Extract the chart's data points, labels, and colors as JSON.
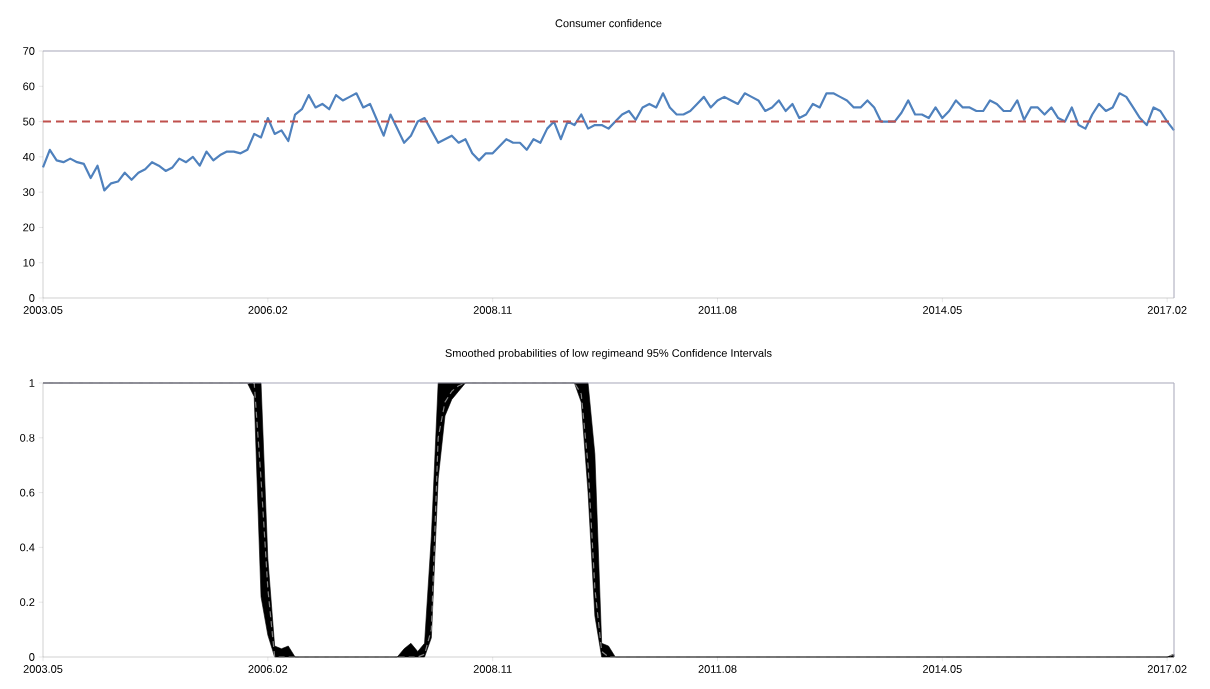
{
  "chart_data": [
    {
      "type": "line",
      "title": "Consumer confidence",
      "x": [
        "2003-05",
        "2003-06",
        "2003-07",
        "2003-08",
        "2003-09",
        "2003-10",
        "2003-11",
        "2003-12",
        "2004-01",
        "2004-02",
        "2004-03",
        "2004-04",
        "2004-05",
        "2004-06",
        "2004-07",
        "2004-08",
        "2004-09",
        "2004-10",
        "2004-11",
        "2004-12",
        "2005-01",
        "2005-02",
        "2005-03",
        "2005-04",
        "2005-05",
        "2005-06",
        "2005-07",
        "2005-08",
        "2005-09",
        "2005-10",
        "2005-11",
        "2005-12",
        "2006-01",
        "2006-02",
        "2006-03",
        "2006-04",
        "2006-05",
        "2006-06",
        "2006-07",
        "2006-08",
        "2006-09",
        "2006-10",
        "2006-11",
        "2006-12",
        "2007-01",
        "2007-02",
        "2007-03",
        "2007-04",
        "2007-05",
        "2007-06",
        "2007-07",
        "2007-08",
        "2007-09",
        "2007-10",
        "2007-11",
        "2007-12",
        "2008-01",
        "2008-02",
        "2008-03",
        "2008-04",
        "2008-05",
        "2008-06",
        "2008-07",
        "2008-08",
        "2008-09",
        "2008-10",
        "2008-11",
        "2008-12",
        "2009-01",
        "2009-02",
        "2009-03",
        "2009-04",
        "2009-05",
        "2009-06",
        "2009-07",
        "2009-08",
        "2009-09",
        "2009-10",
        "2009-11",
        "2009-12",
        "2010-01",
        "2010-02",
        "2010-03",
        "2010-04",
        "2010-05",
        "2010-06",
        "2010-07",
        "2010-08",
        "2010-09",
        "2010-10",
        "2010-11",
        "2010-12",
        "2011-01",
        "2011-02",
        "2011-03",
        "2011-04",
        "2011-05",
        "2011-06",
        "2011-07",
        "2011-08",
        "2011-09",
        "2011-10",
        "2011-11",
        "2011-12",
        "2012-01",
        "2012-02",
        "2012-03",
        "2012-04",
        "2012-05",
        "2012-06",
        "2012-07",
        "2012-08",
        "2012-09",
        "2012-10",
        "2012-11",
        "2012-12",
        "2013-01",
        "2013-02",
        "2013-03",
        "2013-04",
        "2013-05",
        "2013-06",
        "2013-07",
        "2013-08",
        "2013-09",
        "2013-10",
        "2013-11",
        "2013-12",
        "2014-01",
        "2014-02",
        "2014-03",
        "2014-04",
        "2014-05",
        "2014-06",
        "2014-07",
        "2014-08",
        "2014-09",
        "2014-10",
        "2014-11",
        "2014-12",
        "2015-01",
        "2015-02",
        "2015-03",
        "2015-04",
        "2015-05",
        "2015-06",
        "2015-07",
        "2015-08",
        "2015-09",
        "2015-10",
        "2015-11",
        "2015-12",
        "2016-01",
        "2016-02",
        "2016-03",
        "2016-04",
        "2016-05",
        "2016-06",
        "2016-07",
        "2016-08",
        "2016-09",
        "2016-10",
        "2016-11",
        "2016-12",
        "2017-01",
        "2017-02",
        "2017-03"
      ],
      "series": [
        {
          "color": "#4f81bd",
          "values": [
            37,
            42,
            39,
            38.5,
            39.5,
            38.5,
            38,
            34,
            37.5,
            30.5,
            32.5,
            33,
            35.5,
            33.5,
            35.5,
            36.5,
            38.5,
            37.5,
            36,
            37,
            39.5,
            38.5,
            40,
            37.5,
            41.5,
            39,
            40.5,
            41.5,
            41.5,
            41,
            42,
            46.5,
            45.5,
            51,
            46.5,
            47.5,
            44.5,
            52,
            53.5,
            57.5,
            54,
            55,
            53.5,
            57.5,
            56,
            57,
            58,
            54,
            55,
            50.5,
            46,
            52,
            48,
            44,
            46,
            50,
            51,
            47.5,
            44,
            45,
            46,
            44,
            45,
            41,
            39,
            41,
            41,
            43,
            45,
            44,
            44,
            42,
            45,
            44,
            48,
            50,
            45,
            50,
            49,
            52,
            48,
            49,
            49,
            48,
            50,
            52,
            53,
            50.5,
            54,
            55,
            54,
            58,
            54,
            52,
            52,
            53,
            55,
            57,
            54,
            56,
            57,
            56,
            55,
            58,
            57,
            56,
            53,
            54,
            56,
            53,
            55,
            51,
            52,
            55,
            54,
            58,
            58,
            57,
            56,
            54,
            54,
            56,
            54,
            50,
            50,
            50,
            52.5,
            56,
            52,
            52,
            51,
            54,
            51,
            53,
            56,
            54,
            54,
            53,
            53,
            56,
            55,
            53,
            53,
            56,
            50.5,
            54,
            54,
            52,
            54,
            51,
            50,
            54,
            49,
            48,
            52,
            55,
            53,
            54,
            58,
            57,
            54,
            51,
            49,
            54,
            53,
            50,
            47.5
          ]
        }
      ],
      "xlim": [
        "2003-05",
        "2017-03"
      ],
      "xticks": [
        {
          "value": "2003-05",
          "label": "2003.05"
        },
        {
          "value": "2006-02",
          "label": "2006.02"
        },
        {
          "value": "2008-11",
          "label": "2008.11"
        },
        {
          "value": "2011-08",
          "label": "2011.08"
        },
        {
          "value": "2014-05",
          "label": "2014.05"
        },
        {
          "value": "2017-02",
          "label": "2017.02"
        }
      ],
      "ylim": [
        0,
        70
      ],
      "yticks": [
        0,
        10,
        20,
        30,
        40,
        50,
        60,
        70
      ],
      "ref_lines": [
        {
          "axis": "y",
          "value": 50,
          "color": "#c0504d",
          "line_style": "dashed"
        }
      ]
    },
    {
      "type": "line",
      "title": "Smoothed probabilities of low regimeand 95% Confidence Intervals",
      "series": [
        {
          "color": "#808080",
          "line_style": "dashed",
          "x": [
            "2003-05",
            "2005-11",
            "2005-12",
            "2006-01",
            "2006-02",
            "2006-03",
            "2006-04",
            "2006-05",
            "2006-06",
            "2007-09",
            "2007-10",
            "2007-11",
            "2007-12",
            "2008-01",
            "2008-02",
            "2008-03",
            "2008-04",
            "2008-05",
            "2008-06",
            "2008-07",
            "2009-11",
            "2009-12",
            "2010-01",
            "2010-02",
            "2010-03",
            "2010-04",
            "2010-05",
            "2017-02",
            "2017-03"
          ],
          "values": [
            1,
            1,
            1,
            0.65,
            0.25,
            0,
            0,
            0,
            0,
            0,
            0,
            0,
            0,
            0.01,
            0.1,
            0.8,
            0.93,
            0.97,
            0.99,
            1,
            1,
            0.96,
            0.7,
            0.25,
            0.02,
            0,
            0,
            0,
            0.01
          ],
          "lower": [
            1,
            1,
            0.95,
            0.22,
            0.08,
            0,
            0,
            0,
            0,
            0,
            0,
            0,
            0,
            0,
            0.07,
            0.65,
            0.88,
            0.94,
            0.97,
            1,
            1,
            0.93,
            0.6,
            0.15,
            0,
            0,
            0,
            0,
            0
          ],
          "upper": [
            1,
            1,
            1,
            1,
            0.36,
            0.04,
            0.03,
            0.04,
            0,
            0,
            0.03,
            0.05,
            0.02,
            0.05,
            0.44,
            1,
            1,
            1,
            1,
            1,
            1,
            1,
            1,
            0.74,
            0.05,
            0.04,
            0,
            0,
            0.01
          ]
        }
      ],
      "xlim": [
        "2003-05",
        "2017-03"
      ],
      "xticks": [
        {
          "value": "2003-05",
          "label": "2003.05"
        },
        {
          "value": "2006-02",
          "label": "2006.02"
        },
        {
          "value": "2008-11",
          "label": "2008.11"
        },
        {
          "value": "2011-08",
          "label": "2011.08"
        },
        {
          "value": "2014-05",
          "label": "2014.05"
        },
        {
          "value": "2017-02",
          "label": "2017.02"
        }
      ],
      "ylim": [
        0,
        1
      ],
      "yticks": [
        0,
        0.2,
        0.4,
        0.6,
        0.8,
        1
      ]
    }
  ]
}
